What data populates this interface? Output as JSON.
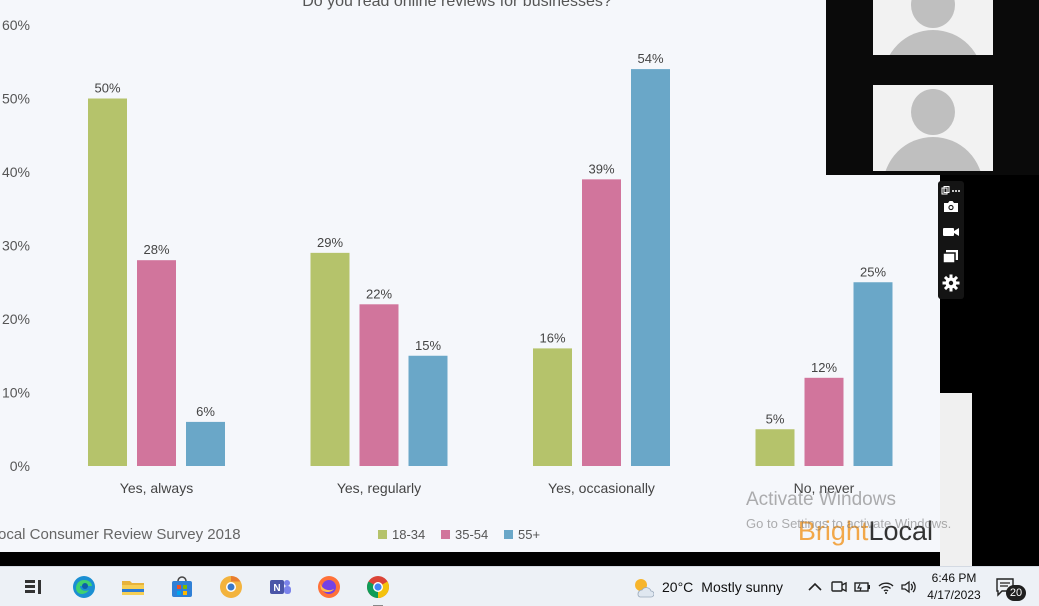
{
  "chart_data": {
    "type": "bar",
    "title": "Do you read online reviews for businesses?",
    "categories": [
      "Yes, always",
      "Yes, regularly",
      "Yes, occasionally",
      "No, never"
    ],
    "series": [
      {
        "name": "18-34",
        "values": [
          50,
          29,
          16,
          5
        ],
        "color": "#b5c36b"
      },
      {
        "name": "35-54",
        "values": [
          28,
          22,
          39,
          12
        ],
        "color": "#d1759c"
      },
      {
        "name": "55+",
        "values": [
          6,
          15,
          54,
          25
        ],
        "color": "#6aa7c8"
      }
    ],
    "data_labels": [
      [
        "50%",
        "29%",
        "16%",
        "5%"
      ],
      [
        "28%",
        "22%",
        "39%",
        "12%"
      ],
      [
        "6%",
        "15%",
        "54%",
        "25%"
      ]
    ],
    "y_ticks": [
      "60%",
      "50%",
      "40%",
      "30%",
      "20%",
      "10%",
      "0%"
    ],
    "ylim": [
      0,
      60
    ],
    "grid": false,
    "legend_position": "bottom-center",
    "source": "ocal Consumer Review Survey 2018",
    "logo": "BrightLocal"
  },
  "windows_watermark": {
    "line1": "Activate Windows",
    "line2": "Go to Settings to activate Windows."
  },
  "video_panel": {
    "icons": [
      "copy-icon",
      "more-icon",
      "camera-icon",
      "video-camera-icon",
      "windows-icon",
      "gear-icon"
    ]
  },
  "taskbar": {
    "apps": [
      "task-view-icon",
      "edge-icon",
      "file-explorer-icon",
      "store-icon",
      "chrome-canary-icon",
      "teams-icon",
      "firefox-icon",
      "chrome-icon"
    ],
    "weather": {
      "temp": "20°C",
      "condition": "Mostly sunny"
    },
    "time": "6:46 PM",
    "date": "4/17/2023",
    "notification_count": "20"
  }
}
